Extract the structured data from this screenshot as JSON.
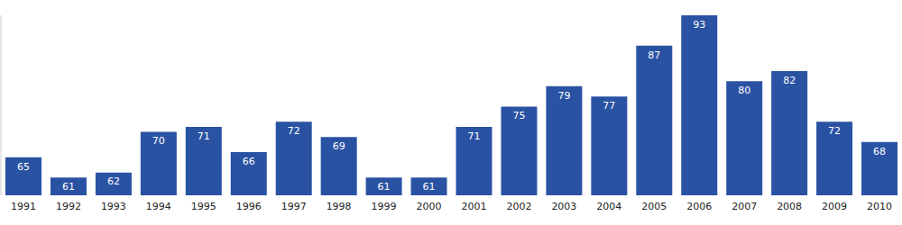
{
  "chart_data": {
    "type": "bar",
    "categories": [
      "1991",
      "1992",
      "1993",
      "1994",
      "1995",
      "1996",
      "1997",
      "1998",
      "1999",
      "2000",
      "2001",
      "2002",
      "2003",
      "2004",
      "2005",
      "2006",
      "2007",
      "2008",
      "2009",
      "2010"
    ],
    "values": [
      65,
      61,
      62,
      70,
      71,
      66,
      72,
      69,
      61,
      61,
      71,
      75,
      79,
      77,
      87,
      93,
      80,
      82,
      72,
      68
    ],
    "color": "#2a52a3",
    "ylim": [
      57.5,
      93
    ],
    "grid": false,
    "data_labels": true,
    "tick_labels": "x"
  }
}
